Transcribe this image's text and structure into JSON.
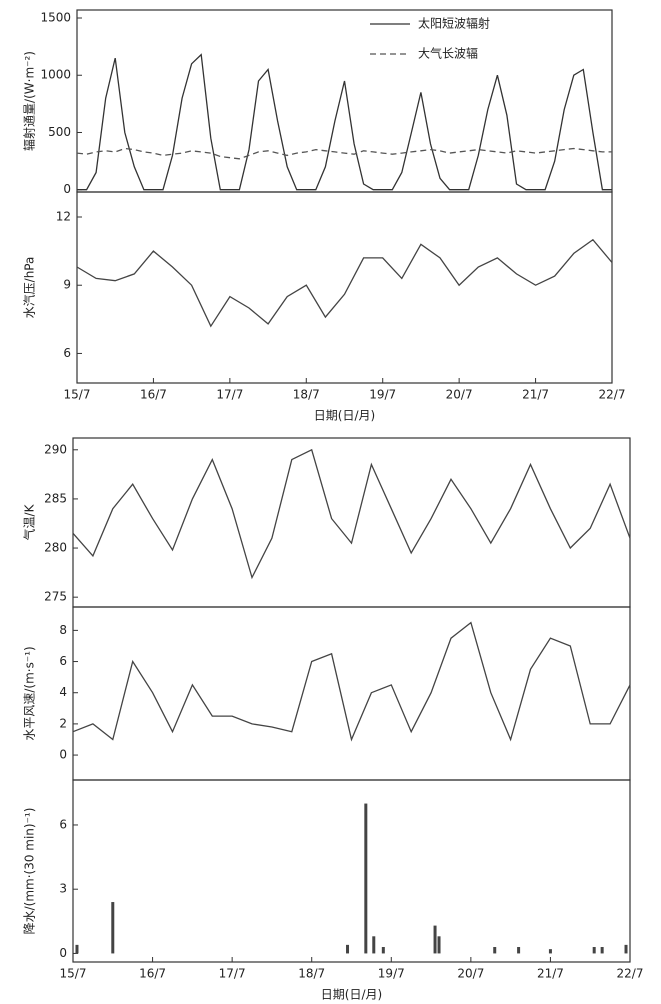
{
  "chart_data": [
    {
      "type": "line",
      "ylabel": "辐射通量/(W·m⁻²)",
      "legend": "top",
      "xlim": [
        15,
        22
      ],
      "ylim": [
        -20,
        1570
      ],
      "yticks": [
        0,
        500,
        1000,
        1500
      ],
      "x": [
        15,
        15.125,
        15.25,
        15.375,
        15.5,
        15.625,
        15.75,
        15.875,
        16,
        16.125,
        16.25,
        16.375,
        16.5,
        16.625,
        16.75,
        16.875,
        17,
        17.125,
        17.25,
        17.375,
        17.5,
        17.625,
        17.75,
        17.875,
        18,
        18.125,
        18.25,
        18.375,
        18.5,
        18.625,
        18.75,
        18.875,
        19,
        19.125,
        19.25,
        19.375,
        19.5,
        19.625,
        19.75,
        19.875,
        20,
        20.125,
        20.25,
        20.375,
        20.5,
        20.625,
        20.75,
        20.875,
        21,
        21.125,
        21.25,
        21.375,
        21.5,
        21.625,
        21.75,
        21.875,
        22
      ],
      "series": [
        {
          "name": "太阳短波辐射",
          "color": "#333333",
          "linestyle": "solid",
          "values": [
            0,
            0,
            150,
            800,
            1150,
            500,
            200,
            0,
            0,
            0,
            300,
            800,
            1100,
            1180,
            450,
            0,
            0,
            0,
            350,
            950,
            1050,
            600,
            200,
            0,
            0,
            0,
            200,
            600,
            950,
            400,
            50,
            0,
            0,
            0,
            150,
            500,
            850,
            400,
            100,
            0,
            0,
            0,
            300,
            700,
            1000,
            650,
            50,
            0,
            0,
            0,
            250,
            700,
            1000,
            1050,
            500,
            0,
            0
          ]
        },
        {
          "name": "大气长波辐",
          "color": "#555555",
          "linestyle": "dashed",
          "values": [
            320,
            310,
            330,
            340,
            330,
            360,
            350,
            330,
            320,
            300,
            310,
            320,
            340,
            330,
            320,
            290,
            280,
            270,
            300,
            330,
            340,
            320,
            300,
            320,
            330,
            350,
            340,
            330,
            320,
            310,
            340,
            330,
            320,
            310,
            320,
            330,
            340,
            350,
            340,
            320,
            330,
            340,
            350,
            340,
            330,
            320,
            340,
            330,
            320,
            330,
            340,
            350,
            360,
            350,
            340,
            330,
            330
          ]
        }
      ]
    },
    {
      "type": "line",
      "ylabel": "水汽压/hPa",
      "xlabel": "日期(日/月)",
      "xlim": [
        15,
        22
      ],
      "ylim": [
        4.7,
        13.1
      ],
      "yticks": [
        6,
        9,
        12
      ],
      "xticks": [
        {
          "value": 15,
          "label": "15/7"
        },
        {
          "value": 16,
          "label": "16/7"
        },
        {
          "value": 17,
          "label": "17/7"
        },
        {
          "value": 18,
          "label": "18/7"
        },
        {
          "value": 19,
          "label": "19/7"
        },
        {
          "value": 20,
          "label": "20/7"
        },
        {
          "value": 21,
          "label": "21/7"
        },
        {
          "value": 22,
          "label": "22/7"
        }
      ],
      "x": [
        15,
        15.25,
        15.5,
        15.75,
        16,
        16.25,
        16.5,
        16.75,
        17,
        17.25,
        17.5,
        17.75,
        18,
        18.25,
        18.5,
        18.75,
        19,
        19.25,
        19.5,
        19.75,
        20,
        20.25,
        20.5,
        20.75,
        21,
        21.25,
        21.5,
        21.75,
        22
      ],
      "series": [
        {
          "color": "#444444",
          "values": [
            9.8,
            9.3,
            9.2,
            9.5,
            10.5,
            9.8,
            9.0,
            7.2,
            8.5,
            8.0,
            7.3,
            8.5,
            9.0,
            7.6,
            8.6,
            10.2,
            10.2,
            9.3,
            10.8,
            10.2,
            9.0,
            9.8,
            10.2,
            9.5,
            9.0,
            9.4,
            10.4,
            11.0,
            10.0
          ]
        }
      ]
    },
    {
      "type": "line",
      "ylabel": "气温/K",
      "xlim": [
        15,
        22
      ],
      "ylim": [
        274,
        291.2
      ],
      "yticks": [
        275,
        280,
        285,
        290
      ],
      "x": [
        15,
        15.25,
        15.5,
        15.75,
        16,
        16.25,
        16.5,
        16.75,
        17,
        17.25,
        17.5,
        17.75,
        18,
        18.25,
        18.5,
        18.75,
        19,
        19.25,
        19.5,
        19.75,
        20,
        20.25,
        20.5,
        20.75,
        21,
        21.25,
        21.5,
        21.75,
        22
      ],
      "series": [
        {
          "color": "#444444",
          "values": [
            281.5,
            279.2,
            284,
            286.5,
            283,
            279.8,
            285,
            289,
            284,
            277,
            281,
            289,
            290,
            283,
            280.5,
            288.5,
            284,
            279.5,
            283,
            287,
            284,
            280.5,
            284,
            288.5,
            284,
            280,
            282,
            286.5,
            281
          ]
        }
      ]
    },
    {
      "type": "line",
      "ylabel": "水平风速/(m·s⁻¹)",
      "xlim": [
        15,
        22
      ],
      "ylim": [
        -1.6,
        9.5
      ],
      "yticks": [
        0,
        2,
        4,
        6,
        8
      ],
      "x": [
        15,
        15.25,
        15.5,
        15.75,
        16,
        16.25,
        16.5,
        16.75,
        17,
        17.25,
        17.5,
        17.75,
        18,
        18.25,
        18.5,
        18.75,
        19,
        19.25,
        19.5,
        19.75,
        20,
        20.25,
        20.5,
        20.75,
        21,
        21.25,
        21.5,
        21.75,
        22
      ],
      "series": [
        {
          "color": "#444444",
          "values": [
            1.5,
            2,
            1,
            6,
            4,
            1.5,
            4.5,
            2.5,
            2.5,
            2,
            1.8,
            1.5,
            6,
            6.5,
            1,
            4,
            4.5,
            1.5,
            4,
            7.5,
            8.5,
            4,
            1,
            5.5,
            7.5,
            7,
            2,
            2,
            4.5
          ]
        }
      ]
    },
    {
      "type": "bar",
      "ylabel": "降水/(mm·(30 min)⁻¹)",
      "xlabel": "日期(日/月)",
      "color": "#444444",
      "xlim": [
        15,
        22
      ],
      "ylim": [
        -0.4,
        8.1
      ],
      "yticks": [
        0,
        3,
        6
      ],
      "xticks": [
        {
          "value": 15,
          "label": "15/7"
        },
        {
          "value": 16,
          "label": "16/7"
        },
        {
          "value": 17,
          "label": "17/7"
        },
        {
          "value": 18,
          "label": "18/7"
        },
        {
          "value": 19,
          "label": "19/7"
        },
        {
          "value": 20,
          "label": "20/7"
        },
        {
          "value": 21,
          "label": "21/7"
        },
        {
          "value": 22,
          "label": "22/7"
        }
      ],
      "x": [
        15.05,
        15.5,
        18.45,
        18.68,
        18.78,
        18.9,
        19.55,
        19.6,
        20.3,
        20.6,
        21.0,
        21.55,
        21.65,
        21.95
      ],
      "values": [
        0.4,
        2.4,
        0.4,
        7.0,
        0.8,
        0.3,
        1.3,
        0.8,
        0.3,
        0.3,
        0.2,
        0.3,
        0.3,
        0.4
      ]
    }
  ]
}
